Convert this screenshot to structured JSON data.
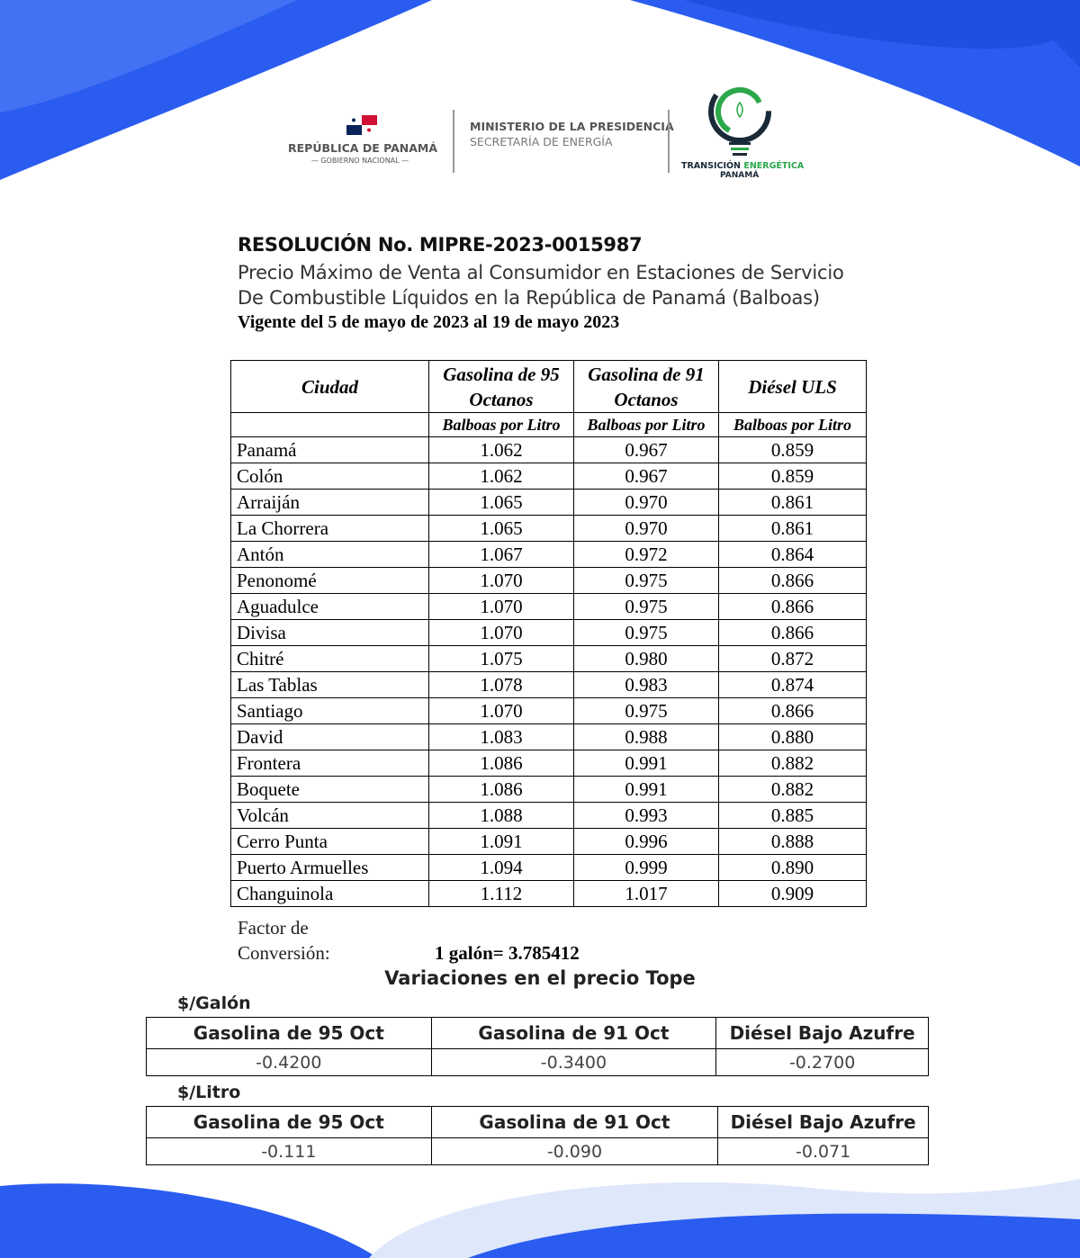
{
  "header": {
    "country": "REPÚBLICA DE PANAMÁ",
    "government": "GOBIERNO NACIONAL",
    "ministry": "MINISTERIO DE LA PRESIDENCIA",
    "secretariat": "SECRETARÍA DE ENERGÍA",
    "logo_text_1": "TRANSICIÓN",
    "logo_text_2": "ENERGÉTICA",
    "logo_text_3": "PANAMÁ"
  },
  "document": {
    "resolution": "RESOLUCIÓN No. MIPRE-2023-0015987",
    "subtitle_1": "Precio Máximo de Venta al Consumidor en Estaciones de Servicio",
    "subtitle_2": "De Combustible Líquidos en la República de Panamá (Balboas)",
    "validity": "Vigente del 5 de mayo de 2023 al 19 de mayo 2023"
  },
  "price_table": {
    "headers": [
      "Ciudad",
      "Gasolina de 95 Octanos",
      "Gasolina de 91 Octanos",
      "Diésel ULS"
    ],
    "unit": "Balboas por Litro",
    "rows": [
      [
        "Panamá",
        "1.062",
        "0.967",
        "0.859"
      ],
      [
        "Colón",
        "1.062",
        "0.967",
        "0.859"
      ],
      [
        "Arraiján",
        "1.065",
        "0.970",
        "0.861"
      ],
      [
        "La Chorrera",
        "1.065",
        "0.970",
        "0.861"
      ],
      [
        "Antón",
        "1.067",
        "0.972",
        "0.864"
      ],
      [
        "Penonomé",
        "1.070",
        "0.975",
        "0.866"
      ],
      [
        "Aguadulce",
        "1.070",
        "0.975",
        "0.866"
      ],
      [
        "Divisa",
        "1.070",
        "0.975",
        "0.866"
      ],
      [
        "Chitré",
        "1.075",
        "0.980",
        "0.872"
      ],
      [
        "Las Tablas",
        "1.078",
        "0.983",
        "0.874"
      ],
      [
        "Santiago",
        "1.070",
        "0.975",
        "0.866"
      ],
      [
        "David",
        "1.083",
        "0.988",
        "0.880"
      ],
      [
        "Frontera",
        "1.086",
        "0.991",
        "0.882"
      ],
      [
        "Boquete",
        "1.086",
        "0.991",
        "0.882"
      ],
      [
        "Volcán",
        "1.088",
        "0.993",
        "0.885"
      ],
      [
        "Cerro Punta",
        "1.091",
        "0.996",
        "0.888"
      ],
      [
        "Puerto Armuelles",
        "1.094",
        "0.999",
        "0.890"
      ],
      [
        "Changuinola",
        "1.112",
        "1.017",
        "0.909"
      ]
    ]
  },
  "conversion": {
    "label_1": "Factor de",
    "label_2": "Conversión:",
    "value": "1 galón= 3.785412"
  },
  "variations": {
    "title": "Variaciones en el precio Tope",
    "gallon": {
      "unit": "$/Galón",
      "headers": [
        "Gasolina de 95 Oct",
        "Gasolina de 91 Oct",
        "Diésel Bajo Azufre"
      ],
      "values": [
        "-0.4200",
        "-0.3400",
        "-0.2700"
      ]
    },
    "liter": {
      "unit": "$/Litro",
      "headers": [
        "Gasolina de 95 Oct",
        "Gasolina de 91 Oct",
        "Diésel Bajo Azufre"
      ],
      "values": [
        "-0.111",
        "-0.090",
        "-0.071"
      ]
    }
  },
  "colors": {
    "brand_blue": "#2a5cf0",
    "light_blue": "#6f95f5",
    "logo_green": "#2ba84a",
    "logo_dark": "#1a2a38"
  }
}
